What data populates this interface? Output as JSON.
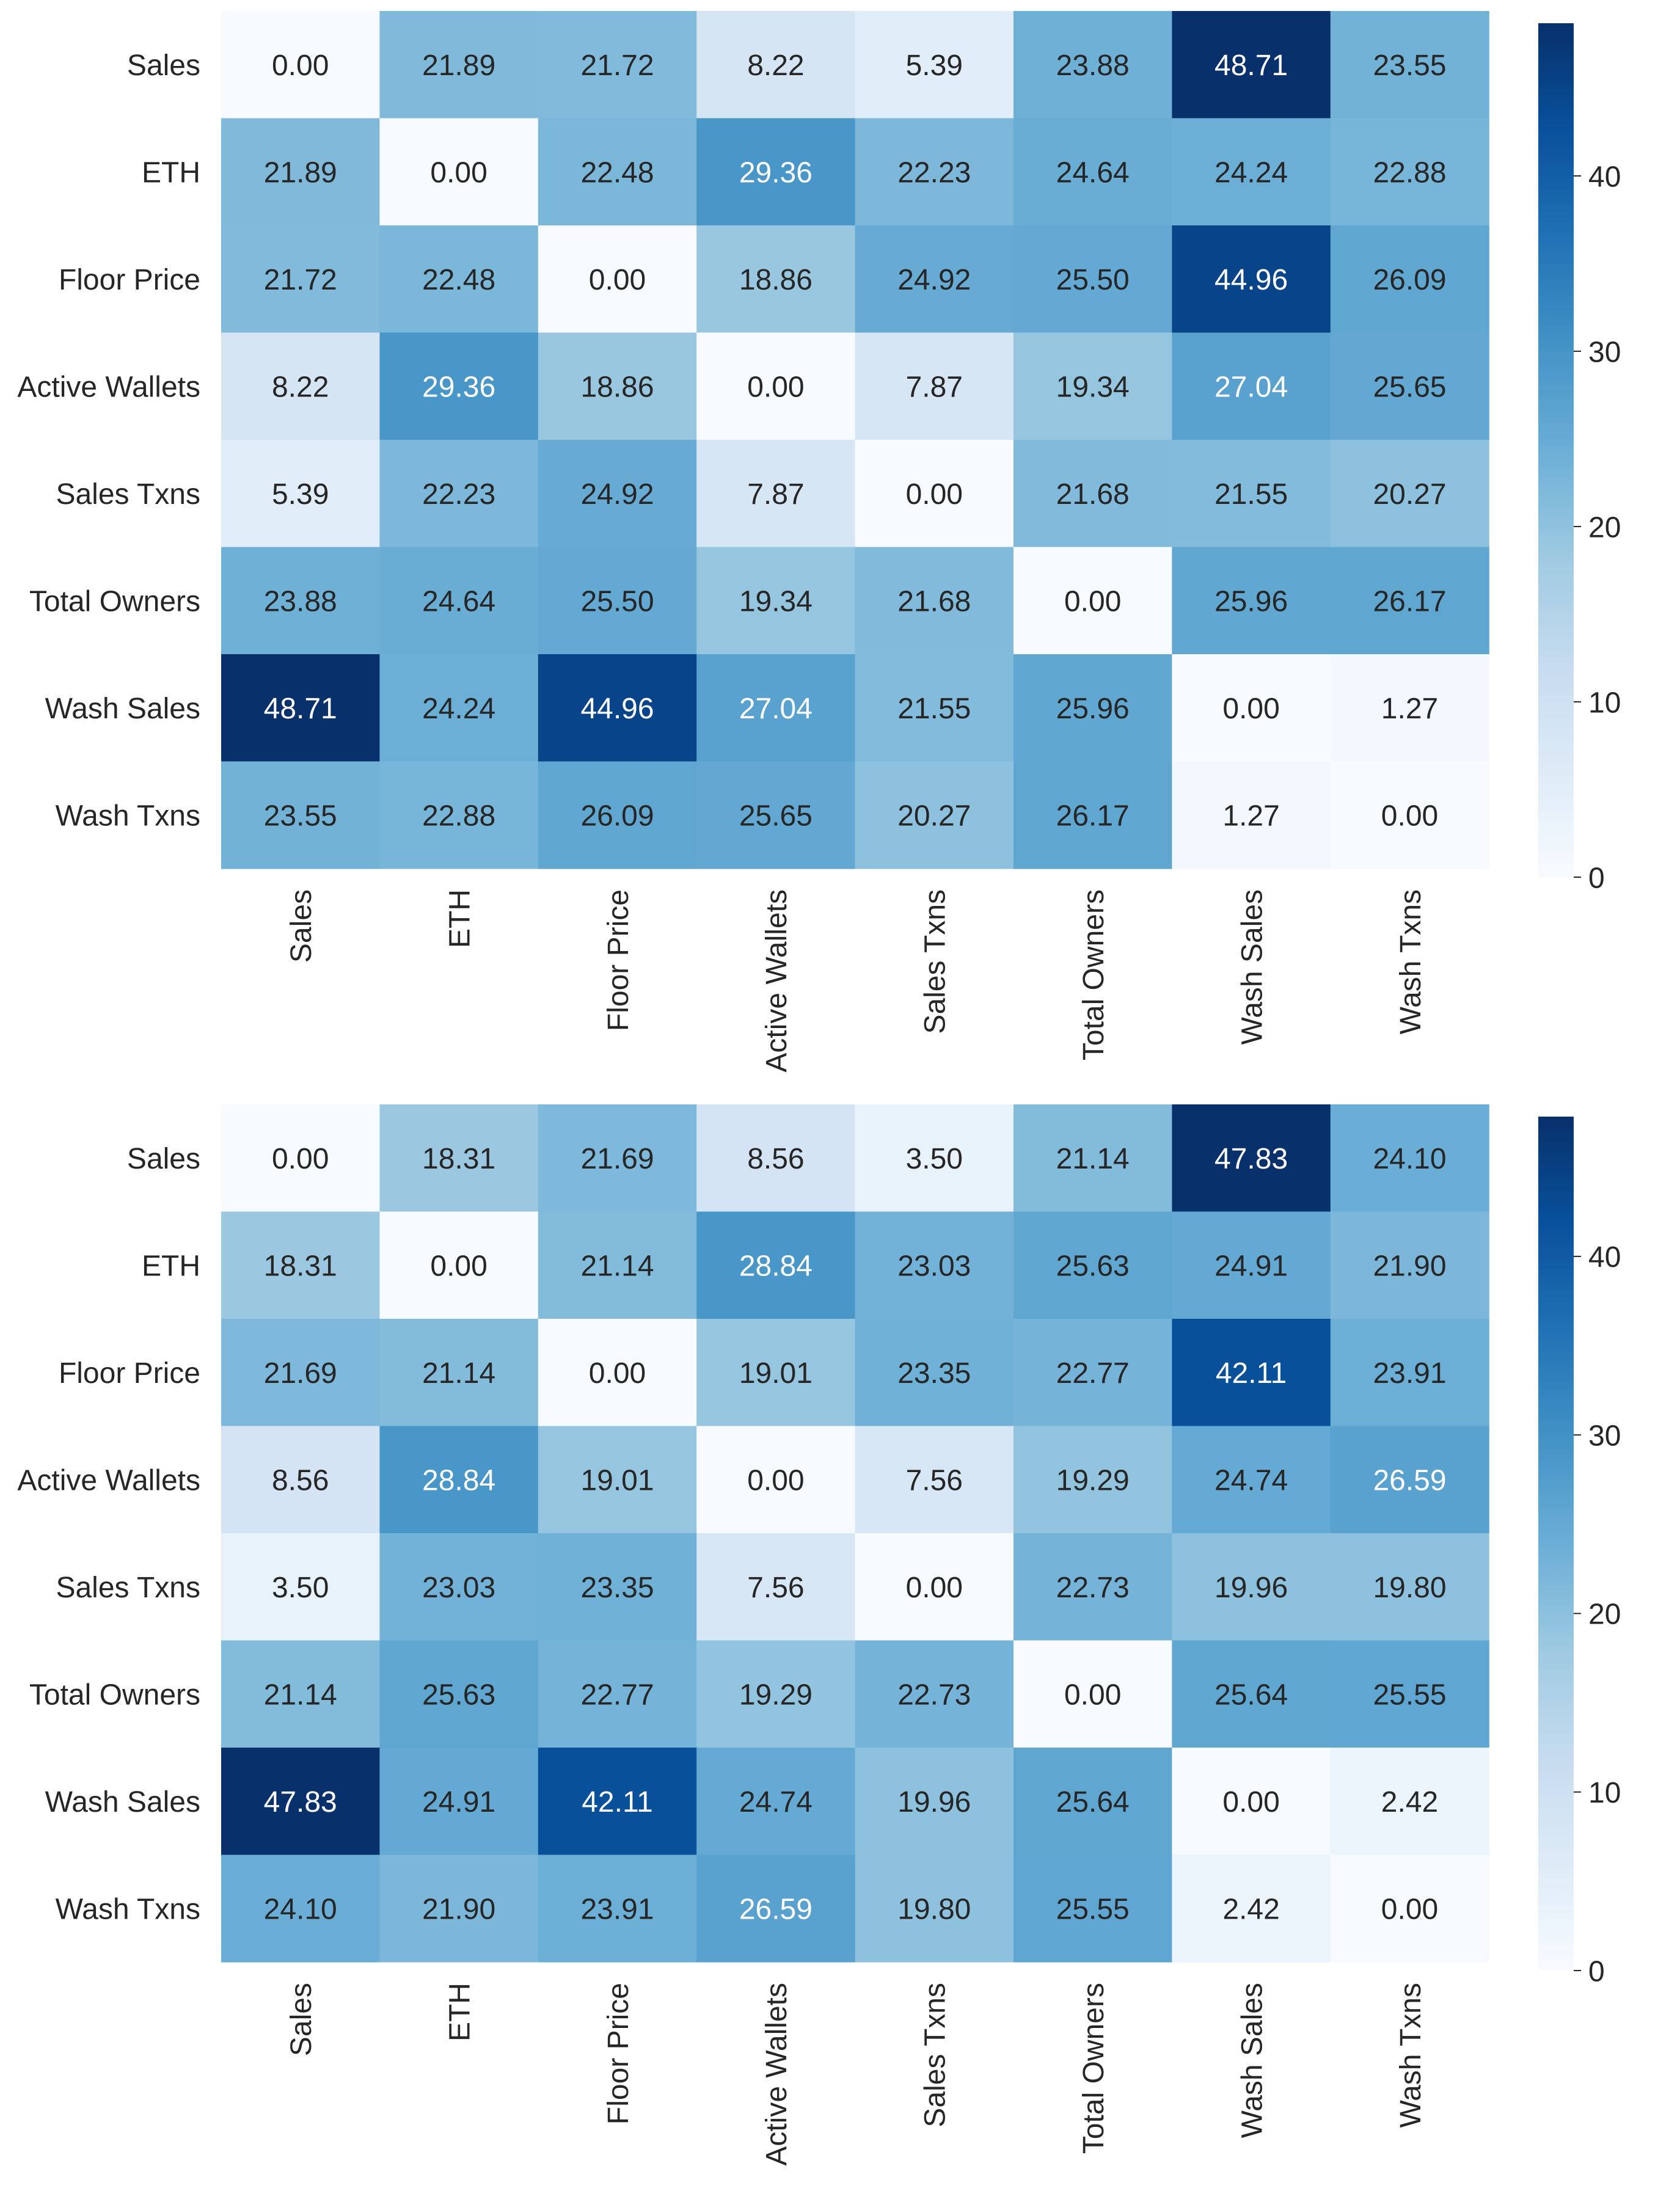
{
  "chart_data": [
    {
      "type": "heatmap",
      "title": "",
      "xlabel": "",
      "ylabel": "",
      "colormap": "Blues",
      "value_range": [
        0,
        48.71
      ],
      "colorbar": {
        "ticks": [
          0,
          10,
          20,
          30,
          40
        ],
        "tick_labels": [
          "0",
          "10",
          "20",
          "30",
          "40"
        ]
      },
      "rows": [
        "Sales",
        "ETH",
        "Floor Price",
        "Active Wallets",
        "Sales Txns",
        "Total Owners",
        "Wash Sales",
        "Wash Txns"
      ],
      "columns": [
        "Sales",
        "ETH",
        "Floor Price",
        "Active Wallets",
        "Sales Txns",
        "Total Owners",
        "Wash Sales",
        "Wash Txns"
      ],
      "values": [
        [
          0.0,
          21.89,
          21.72,
          8.22,
          5.39,
          23.88,
          48.71,
          23.55
        ],
        [
          21.89,
          0.0,
          22.48,
          29.36,
          22.23,
          24.64,
          24.24,
          22.88
        ],
        [
          21.72,
          22.48,
          0.0,
          18.86,
          24.92,
          25.5,
          44.96,
          26.09
        ],
        [
          8.22,
          29.36,
          18.86,
          0.0,
          7.87,
          19.34,
          27.04,
          25.65
        ],
        [
          5.39,
          22.23,
          24.92,
          7.87,
          0.0,
          21.68,
          21.55,
          20.27
        ],
        [
          23.88,
          24.64,
          25.5,
          19.34,
          21.68,
          0.0,
          25.96,
          26.17
        ],
        [
          48.71,
          24.24,
          44.96,
          27.04,
          21.55,
          25.96,
          0.0,
          1.27
        ],
        [
          23.55,
          22.88,
          26.09,
          25.65,
          20.27,
          26.17,
          1.27,
          0.0
        ]
      ]
    },
    {
      "type": "heatmap",
      "title": "",
      "xlabel": "",
      "ylabel": "",
      "colormap": "Blues",
      "value_range": [
        0,
        47.83
      ],
      "colorbar": {
        "ticks": [
          0,
          10,
          20,
          30,
          40
        ],
        "tick_labels": [
          "0",
          "10",
          "20",
          "30",
          "40"
        ]
      },
      "rows": [
        "Sales",
        "ETH",
        "Floor Price",
        "Active Wallets",
        "Sales Txns",
        "Total Owners",
        "Wash Sales",
        "Wash Txns"
      ],
      "columns": [
        "Sales",
        "ETH",
        "Floor Price",
        "Active Wallets",
        "Sales Txns",
        "Total Owners",
        "Wash Sales",
        "Wash Txns"
      ],
      "values": [
        [
          0.0,
          18.31,
          21.69,
          8.56,
          3.5,
          21.14,
          47.83,
          24.1
        ],
        [
          18.31,
          0.0,
          21.14,
          28.84,
          23.03,
          25.63,
          24.91,
          21.9
        ],
        [
          21.69,
          21.14,
          0.0,
          19.01,
          23.35,
          22.77,
          42.11,
          23.91
        ],
        [
          8.56,
          28.84,
          19.01,
          0.0,
          7.56,
          19.29,
          24.74,
          26.59
        ],
        [
          3.5,
          23.03,
          23.35,
          7.56,
          0.0,
          22.73,
          19.96,
          19.8
        ],
        [
          21.14,
          25.63,
          22.77,
          19.29,
          22.73,
          0.0,
          25.64,
          25.55
        ],
        [
          47.83,
          24.91,
          42.11,
          24.74,
          19.96,
          25.64,
          0.0,
          2.42
        ],
        [
          24.1,
          21.9,
          23.91,
          26.59,
          19.8,
          25.55,
          2.42,
          0.0
        ]
      ]
    }
  ]
}
